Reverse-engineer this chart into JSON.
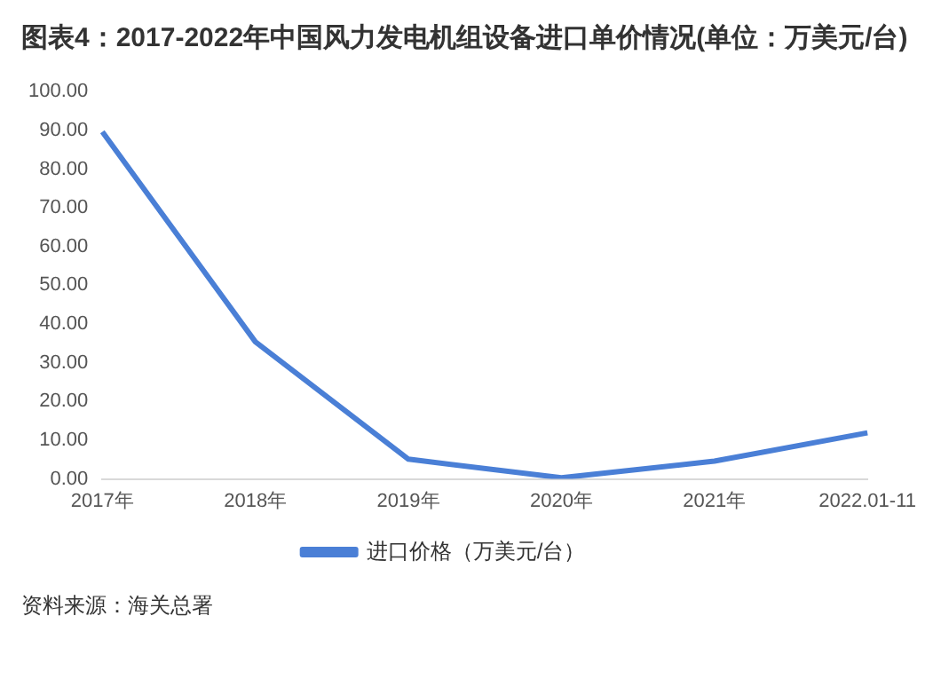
{
  "chart_data": {
    "type": "line",
    "title": "图表4：2017-2022年中国风力发电机组设备进口单价情况(单位：万美元/台)",
    "categories": [
      "2017年",
      "2018年",
      "2019年",
      "2020年",
      "2021年",
      "2022.01-11"
    ],
    "series": [
      {
        "name": "进口价格（万美元/台）",
        "color": "#4a7fd6",
        "values": [
          89.6,
          35.4,
          5.1,
          0.3,
          4.6,
          11.9
        ]
      }
    ],
    "ylim": [
      0,
      100
    ],
    "yticks": [
      {
        "value": 0,
        "label": "0.00"
      },
      {
        "value": 10,
        "label": "10.00"
      },
      {
        "value": 20,
        "label": "20.00"
      },
      {
        "value": 30,
        "label": "30.00"
      },
      {
        "value": 40,
        "label": "40.00"
      },
      {
        "value": 50,
        "label": "50.00"
      },
      {
        "value": 60,
        "label": "60.00"
      },
      {
        "value": 70,
        "label": "70.00"
      },
      {
        "value": 80,
        "label": "80.00"
      },
      {
        "value": 90,
        "label": "90.00"
      },
      {
        "value": 100,
        "label": "100.00"
      }
    ],
    "grid": false,
    "legend": "bottom",
    "marker": "none",
    "line_style": "solid",
    "annotations": [
      "资料来源：海关总署"
    ]
  }
}
